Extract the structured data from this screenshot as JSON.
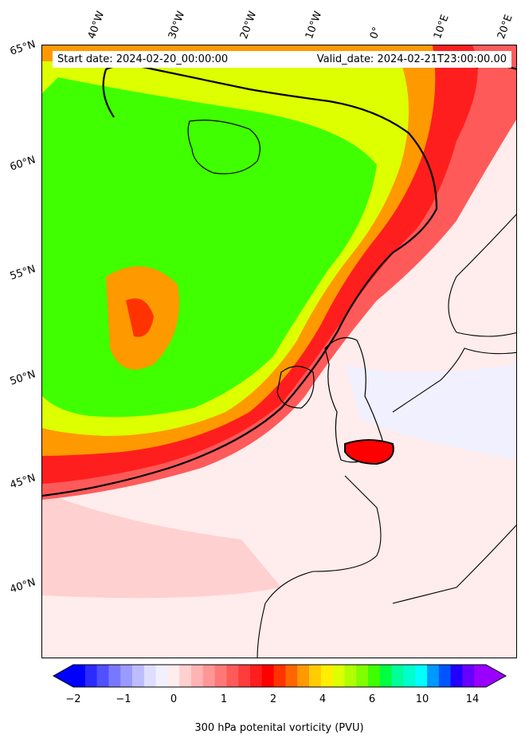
{
  "header": {
    "start_date": "Start date: 2024-02-20_00:00:00",
    "valid_date": "Valid_date: 2024-02-21T23:00:00.00"
  },
  "longitude_labels": [
    "40°W",
    "30°W",
    "20°W",
    "10°W",
    "0°",
    "10°E",
    "20°E"
  ],
  "latitude_labels": [
    "65°N",
    "60°N",
    "55°N",
    "50°N",
    "45°N",
    "40°N"
  ],
  "colorbar": {
    "title": "300 hPa potenital vorticity (PVU)",
    "ticks": [
      "−2",
      "−1",
      "0",
      "1",
      "2",
      "4",
      "6",
      "10",
      "14"
    ],
    "colors": [
      "#0000ff",
      "#2b2bff",
      "#5050ff",
      "#7878ff",
      "#9a9aff",
      "#bcbcff",
      "#dedeff",
      "#f0f0ff",
      "#ffecec",
      "#ffd0d0",
      "#ffb4b4",
      "#ff9696",
      "#ff7878",
      "#ff5a5a",
      "#ff3c3c",
      "#ff1e1e",
      "#ff0000",
      "#ff3300",
      "#ff6600",
      "#ff9900",
      "#ffcc00",
      "#ffee00",
      "#ddff00",
      "#b0ff00",
      "#80ff00",
      "#40ff00",
      "#00ff40",
      "#00ff99",
      "#00ffcc",
      "#00ffff",
      "#0099ff",
      "#0055ff",
      "#2200ff",
      "#6600ff",
      "#9900ff"
    ]
  }
}
